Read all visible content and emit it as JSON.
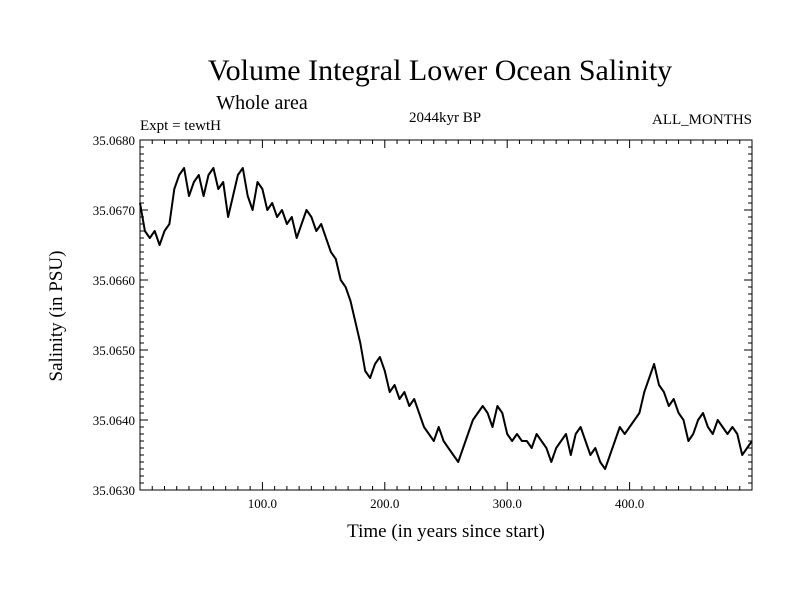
{
  "chart_data": {
    "type": "line",
    "title": "Volume Integral Lower Ocean Salinity",
    "subtitle": "Whole area",
    "experiment": "Expt = tewtH",
    "period": "2044kyr BP",
    "months": "ALL_MONTHS",
    "xlabel": "Time (in years since start)",
    "ylabel": "Salinity (in PSU)",
    "xlim": [
      0,
      500
    ],
    "ylim": [
      35.063,
      35.068
    ],
    "x_ticks": [
      100,
      200,
      300,
      400
    ],
    "x_tick_labels": [
      "100.0",
      "200.0",
      "300.0",
      "400.0"
    ],
    "y_ticks": [
      35.063,
      35.064,
      35.065,
      35.066,
      35.067,
      35.068
    ],
    "y_tick_labels": [
      "35.0630",
      "35.0640",
      "35.0650",
      "35.0660",
      "35.0670",
      "35.0680"
    ],
    "grid": false,
    "series": [
      {
        "name": "Salinity",
        "color": "#000000",
        "x": [
          0,
          4,
          8,
          12,
          16,
          20,
          24,
          28,
          32,
          36,
          40,
          44,
          48,
          52,
          56,
          60,
          64,
          68,
          72,
          76,
          80,
          84,
          88,
          92,
          96,
          100,
          104,
          108,
          112,
          116,
          120,
          124,
          128,
          132,
          136,
          140,
          144,
          148,
          152,
          156,
          160,
          164,
          168,
          172,
          176,
          180,
          184,
          188,
          192,
          196,
          200,
          204,
          208,
          212,
          216,
          220,
          224,
          228,
          232,
          236,
          240,
          244,
          248,
          252,
          256,
          260,
          264,
          268,
          272,
          276,
          280,
          284,
          288,
          292,
          296,
          300,
          304,
          308,
          312,
          316,
          320,
          324,
          328,
          332,
          336,
          340,
          344,
          348,
          352,
          356,
          360,
          364,
          368,
          372,
          376,
          380,
          384,
          388,
          392,
          396,
          400,
          404,
          408,
          412,
          416,
          420,
          424,
          428,
          432,
          436,
          440,
          444,
          448,
          452,
          456,
          460,
          464,
          468,
          472,
          476,
          480,
          484,
          488,
          492,
          496,
          500
        ],
        "values": [
          35.0671,
          35.0667,
          35.0666,
          35.0667,
          35.0665,
          35.0667,
          35.0668,
          35.0673,
          35.0675,
          35.0676,
          35.0672,
          35.0674,
          35.0675,
          35.0672,
          35.0675,
          35.0676,
          35.0673,
          35.0674,
          35.0669,
          35.0672,
          35.0675,
          35.0676,
          35.0672,
          35.067,
          35.0674,
          35.0673,
          35.067,
          35.0671,
          35.0669,
          35.067,
          35.0668,
          35.0669,
          35.0666,
          35.0668,
          35.067,
          35.0669,
          35.0667,
          35.0668,
          35.0666,
          35.0664,
          35.0663,
          35.066,
          35.0659,
          35.0657,
          35.0654,
          35.0651,
          35.0647,
          35.0646,
          35.0648,
          35.0649,
          35.0647,
          35.0644,
          35.0645,
          35.0643,
          35.0644,
          35.0642,
          35.0643,
          35.0641,
          35.0639,
          35.0638,
          35.0637,
          35.0639,
          35.0637,
          35.0636,
          35.0635,
          35.0634,
          35.0636,
          35.0638,
          35.064,
          35.0641,
          35.0642,
          35.0641,
          35.0639,
          35.0642,
          35.0641,
          35.0638,
          35.0637,
          35.0638,
          35.0637,
          35.0637,
          35.0636,
          35.0638,
          35.0637,
          35.0636,
          35.0634,
          35.0636,
          35.0637,
          35.0638,
          35.0635,
          35.0638,
          35.0639,
          35.0637,
          35.0635,
          35.0636,
          35.0634,
          35.0633,
          35.0635,
          35.0637,
          35.0639,
          35.0638,
          35.0639,
          35.064,
          35.0641,
          35.0644,
          35.0646,
          35.0648,
          35.0645,
          35.0644,
          35.0642,
          35.0643,
          35.0641,
          35.064,
          35.0637,
          35.0638,
          35.064,
          35.0641,
          35.0639,
          35.0638,
          35.064,
          35.0639,
          35.0638,
          35.0639,
          35.0638,
          35.0635,
          35.0636,
          35.0637
        ]
      }
    ]
  }
}
